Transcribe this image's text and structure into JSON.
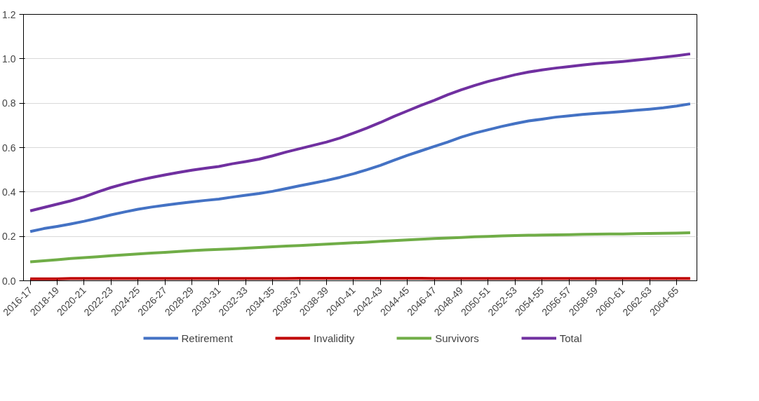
{
  "chart_data": {
    "type": "line",
    "categories": [
      "2016-17",
      null,
      "2018-19",
      null,
      "2020-21",
      null,
      "2022-23",
      null,
      "2024-25",
      null,
      "2026-27",
      null,
      "2028-29",
      null,
      "2030-31",
      null,
      "2032-33",
      null,
      "2034-35",
      null,
      "2036-37",
      null,
      "2038-39",
      null,
      "2040-41",
      null,
      "2042-43",
      null,
      "2044-45",
      null,
      "2046-47",
      null,
      "2048-49",
      null,
      "2050-51",
      null,
      "2052-53",
      null,
      "2054-55",
      null,
      "2056-57",
      null,
      "2058-59",
      null,
      "2060-61",
      null,
      "2062-63",
      null,
      "2064-65",
      null
    ],
    "series": [
      {
        "name": "Retirement",
        "color": "#4472c4",
        "values": [
          0.222,
          0.235,
          0.245,
          0.256,
          0.268,
          0.282,
          0.297,
          0.31,
          0.322,
          0.332,
          0.34,
          0.348,
          0.355,
          0.362,
          0.368,
          0.377,
          0.385,
          0.393,
          0.403,
          0.415,
          0.428,
          0.44,
          0.452,
          0.466,
          0.482,
          0.5,
          0.52,
          0.543,
          0.565,
          0.585,
          0.605,
          0.625,
          0.647,
          0.665,
          0.68,
          0.695,
          0.708,
          0.72,
          0.728,
          0.737,
          0.743,
          0.749,
          0.754,
          0.758,
          0.763,
          0.768,
          0.773,
          0.779,
          0.787,
          0.797
        ]
      },
      {
        "name": "Invalidity",
        "color": "#c00000",
        "values": [
          0.009,
          0.009,
          0.009,
          0.01,
          0.01,
          0.01,
          0.01,
          0.01,
          0.01,
          0.01,
          0.01,
          0.01,
          0.01,
          0.01,
          0.01,
          0.01,
          0.01,
          0.01,
          0.01,
          0.01,
          0.011,
          0.011,
          0.011,
          0.011,
          0.011,
          0.011,
          0.011,
          0.011,
          0.011,
          0.011,
          0.01,
          0.01,
          0.01,
          0.01,
          0.01,
          0.01,
          0.01,
          0.01,
          0.01,
          0.01,
          0.01,
          0.01,
          0.01,
          0.01,
          0.01,
          0.01,
          0.01,
          0.01,
          0.01,
          0.01
        ]
      },
      {
        "name": "Survivors",
        "color": "#70ad47",
        "values": [
          0.085,
          0.09,
          0.095,
          0.1,
          0.104,
          0.108,
          0.113,
          0.117,
          0.121,
          0.125,
          0.128,
          0.132,
          0.136,
          0.139,
          0.141,
          0.144,
          0.147,
          0.15,
          0.153,
          0.156,
          0.159,
          0.162,
          0.165,
          0.168,
          0.171,
          0.174,
          0.178,
          0.181,
          0.184,
          0.187,
          0.19,
          0.193,
          0.195,
          0.198,
          0.2,
          0.202,
          0.204,
          0.205,
          0.206,
          0.207,
          0.208,
          0.209,
          0.21,
          0.211,
          0.211,
          0.212,
          0.213,
          0.214,
          0.215,
          0.216
        ]
      },
      {
        "name": "Total",
        "color": "#7030a0",
        "values": [
          0.315,
          0.33,
          0.345,
          0.36,
          0.378,
          0.4,
          0.42,
          0.437,
          0.452,
          0.465,
          0.477,
          0.488,
          0.498,
          0.507,
          0.515,
          0.527,
          0.537,
          0.548,
          0.563,
          0.58,
          0.595,
          0.61,
          0.625,
          0.643,
          0.665,
          0.688,
          0.713,
          0.74,
          0.765,
          0.79,
          0.813,
          0.838,
          0.86,
          0.88,
          0.898,
          0.913,
          0.928,
          0.94,
          0.95,
          0.958,
          0.965,
          0.972,
          0.978,
          0.983,
          0.988,
          0.994,
          1.0,
          1.007,
          1.014,
          1.022
        ]
      }
    ],
    "ylim": [
      0,
      1.2
    ],
    "yticks": [
      {
        "value": 0,
        "label": "0.0"
      },
      {
        "value": 0.2,
        "label": "0.2"
      },
      {
        "value": 0.4,
        "label": "0.4"
      },
      {
        "value": 0.6,
        "label": "0.6"
      },
      {
        "value": 0.8,
        "label": "0.8"
      },
      {
        "value": 1.0,
        "label": "1.0"
      },
      {
        "value": 1.2,
        "label": "1.2"
      }
    ],
    "grid": "y",
    "legend": "bottom",
    "marker": "none",
    "line_style": "solid"
  }
}
